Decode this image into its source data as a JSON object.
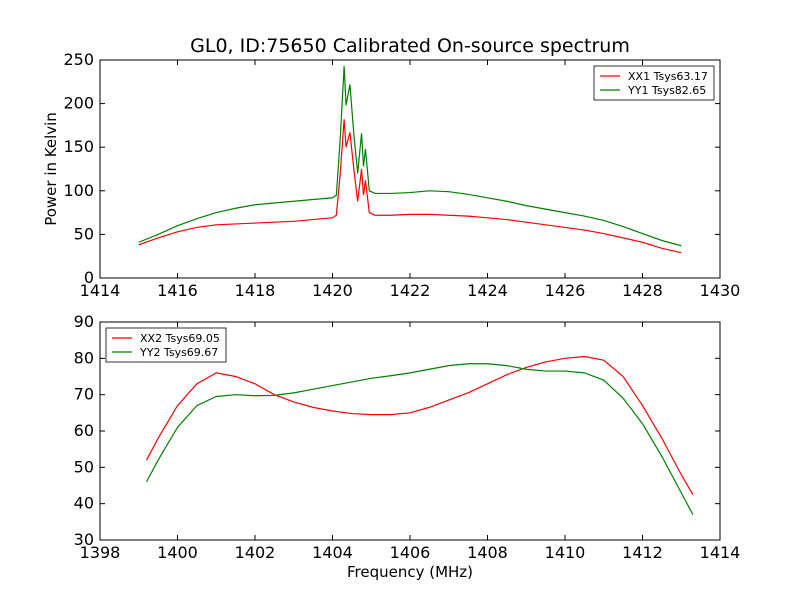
{
  "figure": {
    "title": "GL0, ID:75650 Calibrated On-source spectrum"
  },
  "chart_data": [
    {
      "type": "line",
      "title": "GL0, ID:75650 Calibrated On-source spectrum",
      "xlabel": "",
      "ylabel": "Power in Kelvin",
      "xlim": [
        1414,
        1430
      ],
      "ylim": [
        0,
        250
      ],
      "xticks": [
        1414,
        1416,
        1418,
        1420,
        1422,
        1424,
        1426,
        1428,
        1430
      ],
      "yticks": [
        0,
        50,
        100,
        150,
        200,
        250
      ],
      "grid": false,
      "legend": "top-right",
      "series": [
        {
          "name": "XX1 Tsys63.17",
          "color": "#ff0000",
          "x": [
            1415.0,
            1415.5,
            1416.0,
            1416.5,
            1417.0,
            1417.5,
            1418.0,
            1418.5,
            1419.0,
            1419.5,
            1420.0,
            1420.1,
            1420.2,
            1420.3,
            1420.35,
            1420.45,
            1420.55,
            1420.65,
            1420.75,
            1420.8,
            1420.85,
            1420.95,
            1421.1,
            1421.5,
            1422.0,
            1422.5,
            1423.0,
            1423.5,
            1424.0,
            1424.5,
            1425.0,
            1425.5,
            1426.0,
            1426.5,
            1427.0,
            1427.5,
            1428.0,
            1428.5,
            1429.0
          ],
          "y": [
            38,
            46,
            53,
            58,
            61,
            62,
            63,
            64,
            65,
            67,
            69,
            72,
            120,
            182,
            150,
            167,
            125,
            88,
            125,
            95,
            112,
            75,
            72,
            72,
            73,
            73,
            72,
            71,
            69,
            67,
            64,
            61,
            58,
            55,
            51,
            46,
            41,
            34,
            29
          ]
        },
        {
          "name": "YY1 Tsys82.65",
          "color": "#008000",
          "x": [
            1415.0,
            1415.5,
            1416.0,
            1416.5,
            1417.0,
            1417.5,
            1418.0,
            1418.5,
            1419.0,
            1419.5,
            1420.0,
            1420.1,
            1420.2,
            1420.3,
            1420.35,
            1420.45,
            1420.55,
            1420.65,
            1420.75,
            1420.8,
            1420.85,
            1420.95,
            1421.1,
            1421.5,
            1422.0,
            1422.5,
            1423.0,
            1423.5,
            1424.0,
            1424.5,
            1425.0,
            1425.5,
            1426.0,
            1426.5,
            1427.0,
            1427.5,
            1428.0,
            1428.5,
            1429.0
          ],
          "y": [
            41,
            50,
            60,
            68,
            75,
            80,
            84,
            86,
            88,
            90,
            92,
            95,
            160,
            243,
            198,
            222,
            165,
            120,
            166,
            128,
            148,
            100,
            97,
            97,
            98,
            100,
            99,
            96,
            92,
            88,
            83,
            79,
            75,
            71,
            66,
            59,
            51,
            43,
            37
          ]
        }
      ]
    },
    {
      "type": "line",
      "title": "",
      "xlabel": "Frequency (MHz)",
      "ylabel": "",
      "xlim": [
        1398,
        1414
      ],
      "ylim": [
        30,
        90
      ],
      "xticks": [
        1398,
        1400,
        1402,
        1404,
        1406,
        1408,
        1410,
        1412,
        1414
      ],
      "yticks": [
        30,
        40,
        50,
        60,
        70,
        80,
        90
      ],
      "grid": false,
      "legend": "top-left",
      "series": [
        {
          "name": "XX2 Tsys69.05",
          "color": "#ff0000",
          "x": [
            1399.2,
            1399.5,
            1400.0,
            1400.5,
            1401.0,
            1401.5,
            1402.0,
            1402.5,
            1403.0,
            1403.5,
            1404.0,
            1404.5,
            1405.0,
            1405.5,
            1406.0,
            1406.5,
            1407.0,
            1407.5,
            1408.0,
            1408.5,
            1409.0,
            1409.5,
            1410.0,
            1410.5,
            1411.0,
            1411.5,
            1412.0,
            1412.5,
            1413.0,
            1413.3
          ],
          "y": [
            52,
            58,
            67,
            73,
            76,
            75,
            73,
            70,
            68,
            66.5,
            65.5,
            64.8,
            64.5,
            64.5,
            65,
            66.5,
            68.5,
            70.5,
            73,
            75.5,
            77.5,
            79,
            80,
            80.5,
            79.5,
            75,
            67,
            58,
            48,
            42.5
          ]
        },
        {
          "name": "YY2 Tsys69.67",
          "color": "#008000",
          "x": [
            1399.2,
            1399.5,
            1400.0,
            1400.5,
            1401.0,
            1401.5,
            1402.0,
            1402.5,
            1403.0,
            1403.5,
            1404.0,
            1404.5,
            1405.0,
            1405.5,
            1406.0,
            1406.5,
            1407.0,
            1407.5,
            1408.0,
            1408.5,
            1409.0,
            1409.5,
            1410.0,
            1410.5,
            1411.0,
            1411.5,
            1412.0,
            1412.5,
            1413.0,
            1413.3
          ],
          "y": [
            46,
            52,
            61,
            67,
            69.5,
            70,
            69.7,
            69.8,
            70.5,
            71.5,
            72.5,
            73.5,
            74.5,
            75.2,
            76,
            77,
            78,
            78.5,
            78.5,
            78,
            77,
            76.5,
            76.5,
            76,
            74,
            69,
            62,
            53,
            43,
            37
          ]
        }
      ]
    }
  ]
}
